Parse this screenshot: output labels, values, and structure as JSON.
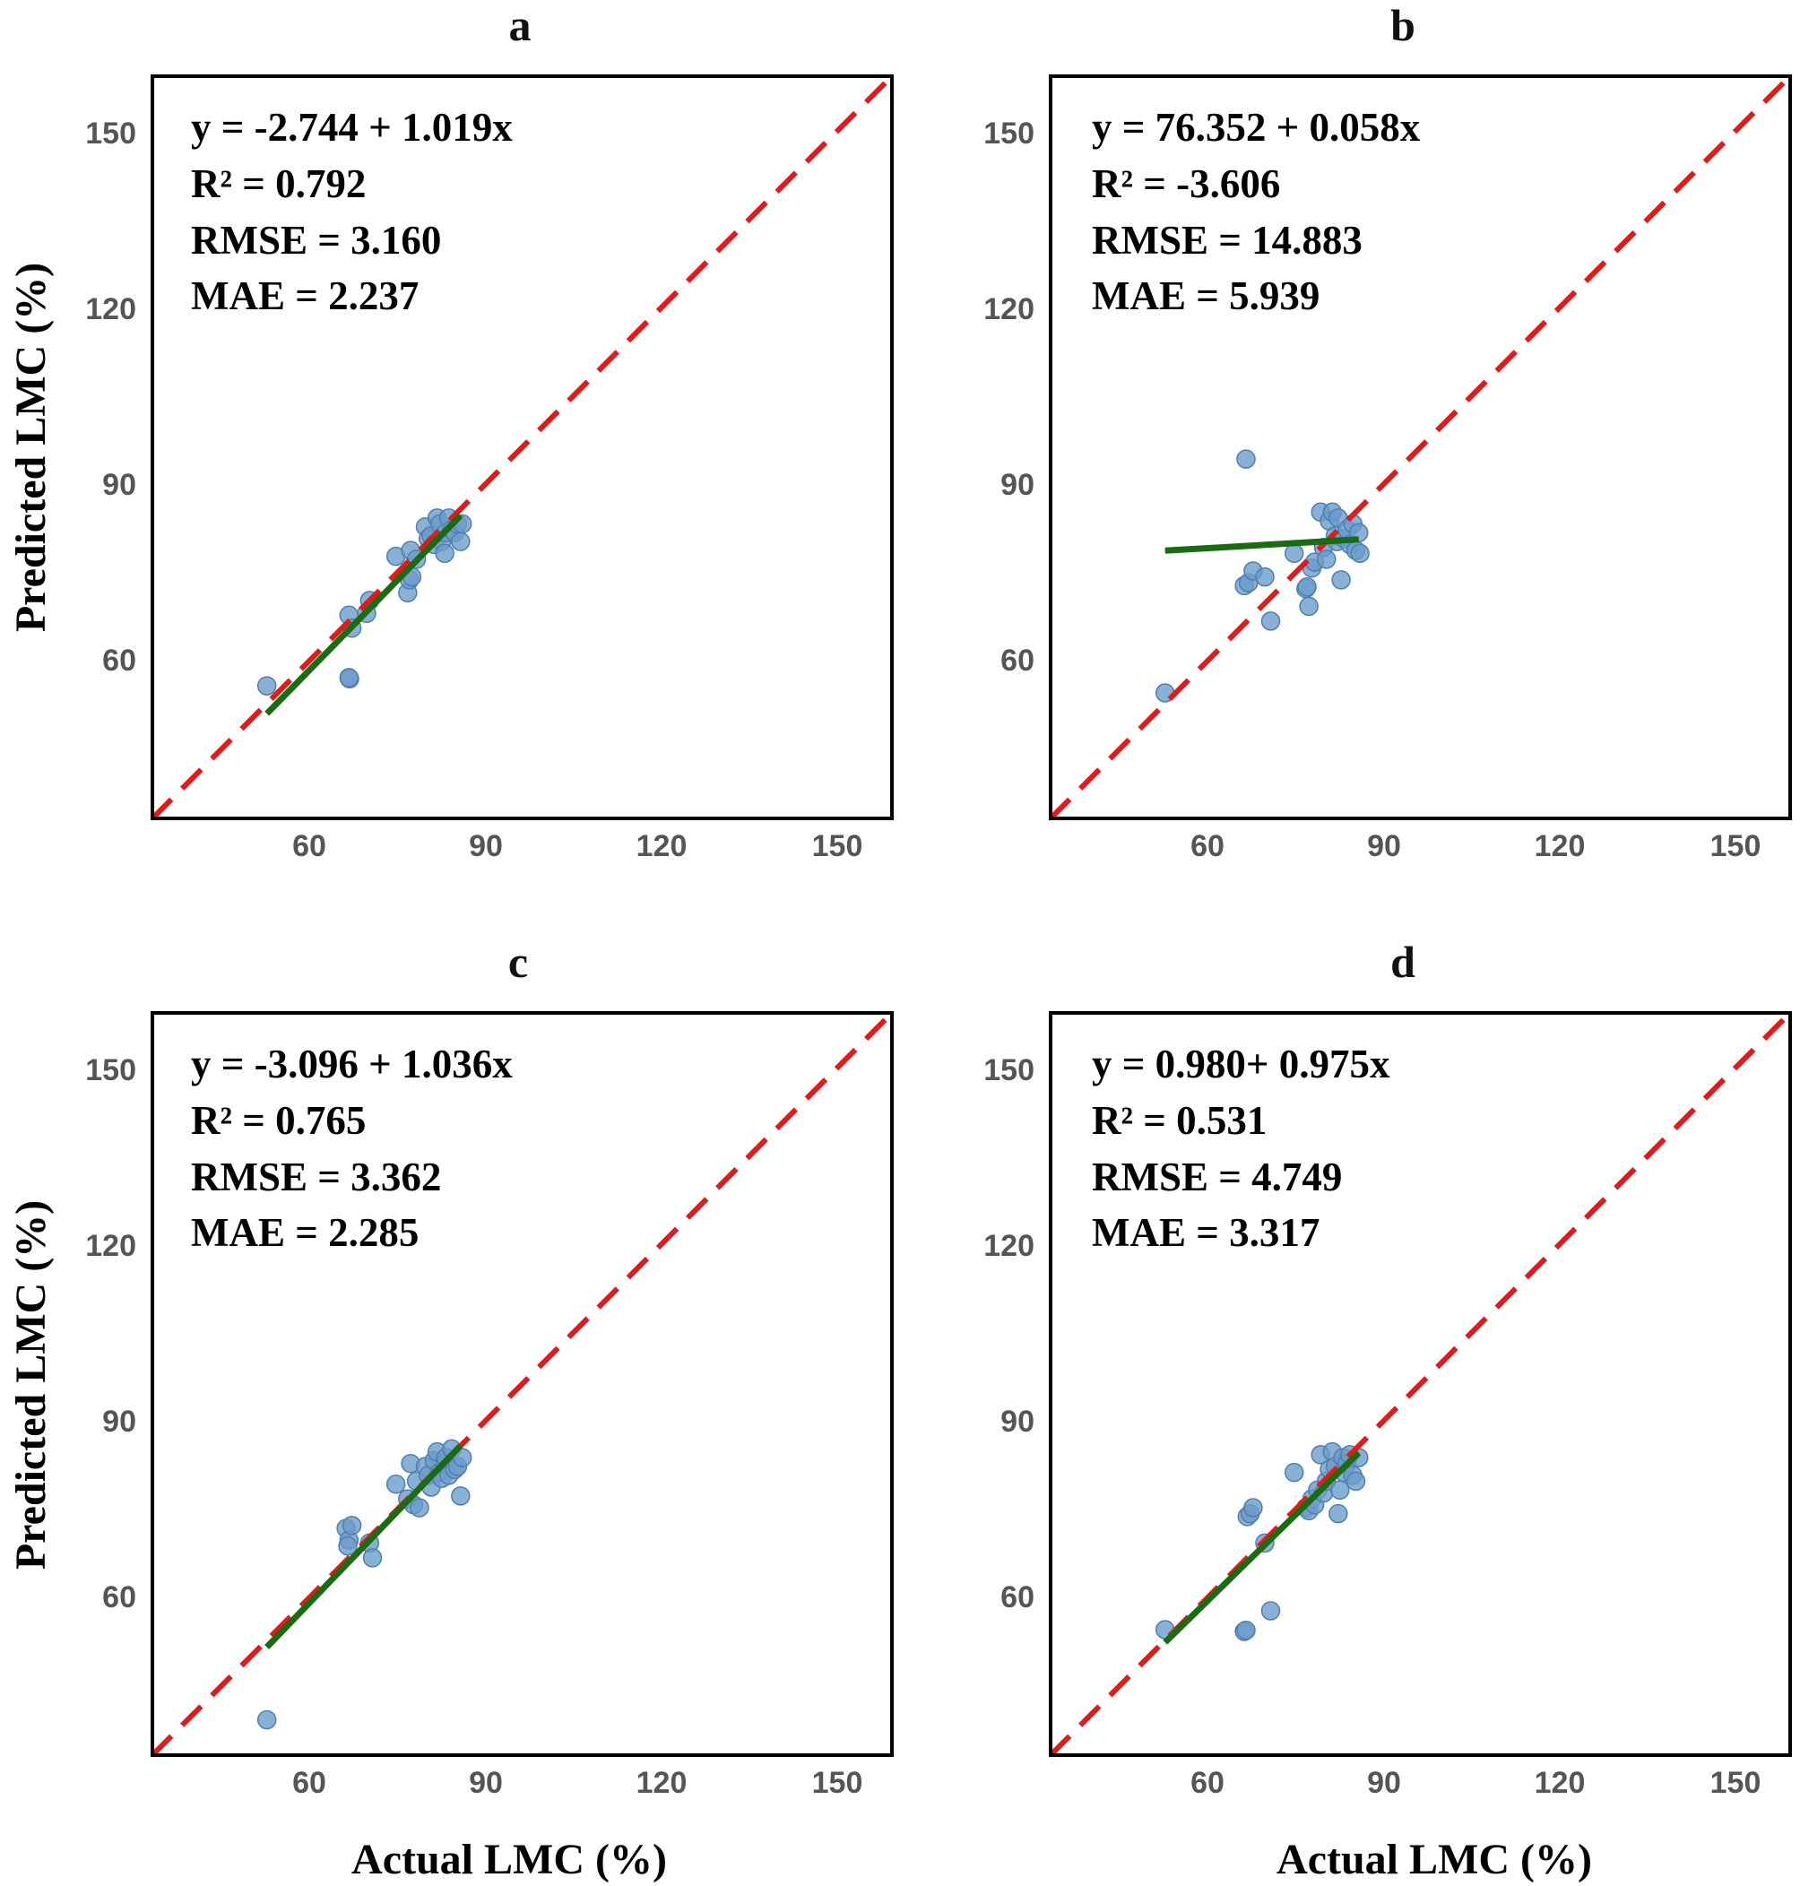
{
  "labels": {
    "ylabel": "Predicted LMC (%)",
    "xlabel": "Actual LMC (%)"
  },
  "colors": {
    "identity_line": "#e01b1b",
    "fit_line": "#1a6b12",
    "points": "#6b9cca",
    "points_edge": "#4f7fae",
    "frame": "#000000"
  },
  "chart_data": [
    {
      "type": "scatter",
      "title": "a",
      "xlabel": "",
      "ylabel": "Predicted LMC (%)",
      "xlim": [
        34,
        160
      ],
      "ylim": [
        34,
        160
      ],
      "xticks": [
        "60",
        "90",
        "120",
        "150"
      ],
      "yticks": [
        "150",
        "120",
        "90",
        "60"
      ],
      "stats": [
        "y = -2.744 + 1.019x",
        "R² = 0.792",
        "RMSE = 3.160",
        "MAE = 2.237"
      ],
      "fit": {
        "intercept": -2.744,
        "slope": 1.019,
        "x_range": [
          53.5,
          86.5
        ]
      },
      "identity_line": true,
      "x": [
        53.5,
        67.5,
        67.6,
        67.5,
        68.0,
        70.5,
        71.0,
        75.5,
        77.5,
        77.8,
        78.0,
        78.2,
        79.0,
        80.5,
        81.0,
        81.5,
        82.0,
        82.5,
        83.0,
        83.3,
        83.8,
        84.0,
        84.5,
        85.0,
        85.5,
        86.0,
        86.5,
        86.8
      ],
      "y": [
        56.5,
        68.5,
        57.7,
        57.9,
        66.3,
        68.8,
        71.0,
        78.5,
        72.3,
        74.5,
        79.5,
        75.0,
        78.0,
        83.5,
        81.5,
        82.0,
        80.5,
        85.0,
        84.0,
        81.0,
        79.0,
        82.5,
        85.0,
        83.0,
        82.5,
        84.0,
        81.0,
        84.0
      ]
    },
    {
      "type": "scatter",
      "title": "b",
      "xlabel": "",
      "ylabel": "",
      "xlim": [
        34,
        160
      ],
      "ylim": [
        34,
        160
      ],
      "xticks": [
        "60",
        "90",
        "120",
        "150"
      ],
      "yticks": [
        "150",
        "120",
        "90",
        "60"
      ],
      "stats": [
        "y = 76.352 + 0.058x",
        "R² = -3.606",
        "RMSE = 14.883",
        "MAE = 5.939"
      ],
      "fit": {
        "intercept": 76.352,
        "slope": 0.058,
        "x_range": [
          53.5,
          86.5
        ]
      },
      "identity_line": true,
      "x": [
        53.5,
        67.3,
        67.0,
        67.7,
        68.5,
        70.5,
        71.5,
        75.5,
        77.5,
        77.7,
        78.0,
        78.5,
        79.0,
        80.0,
        80.5,
        81.0,
        81.5,
        82.0,
        82.5,
        82.8,
        83.0,
        83.5,
        84.0,
        84.5,
        85.0,
        85.5,
        86.0,
        86.5,
        86.7
      ],
      "y": [
        55.3,
        95.0,
        73.5,
        74.0,
        76.0,
        75.0,
        67.5,
        79.0,
        73.0,
        73.3,
        70.0,
        76.5,
        77.5,
        86.0,
        80.0,
        78.0,
        84.5,
        86.0,
        82.0,
        81.0,
        85.0,
        74.5,
        81.5,
        83.0,
        80.5,
        84.0,
        79.5,
        82.5,
        79.0
      ]
    },
    {
      "type": "scatter",
      "title": "c",
      "xlabel": "Actual LMC (%)",
      "ylabel": "Predicted LMC (%)",
      "xlim": [
        34,
        160
      ],
      "ylim": [
        34,
        160
      ],
      "xticks": [
        "60",
        "90",
        "120",
        "150"
      ],
      "yticks": [
        "150",
        "120",
        "90",
        "60"
      ],
      "stats": [
        "y = -3.096 + 1.036x",
        "R² = 0.765",
        "RMSE = 3.362",
        "MAE = 2.285"
      ],
      "fit": {
        "intercept": -3.096,
        "slope": 1.036,
        "x_range": [
          53.5,
          86.5
        ]
      },
      "identity_line": true,
      "x": [
        53.5,
        67.0,
        67.5,
        68.0,
        67.3,
        71.0,
        71.5,
        75.5,
        77.5,
        78.0,
        78.5,
        79.0,
        79.5,
        80.5,
        81.0,
        81.5,
        82.0,
        82.5,
        83.0,
        83.3,
        83.8,
        84.0,
        84.5,
        85.0,
        85.5,
        86.0,
        86.5,
        86.8
      ],
      "y": [
        40.0,
        72.5,
        70.5,
        73.0,
        69.5,
        70.0,
        67.5,
        80.0,
        77.5,
        83.5,
        76.5,
        80.5,
        76.0,
        83.0,
        81.5,
        79.5,
        84.0,
        85.5,
        82.0,
        81.0,
        83.5,
        84.5,
        81.5,
        86.0,
        82.5,
        83.0,
        78.0,
        84.5
      ]
    },
    {
      "type": "scatter",
      "title": "d",
      "xlabel": "Actual LMC (%)",
      "ylabel": "",
      "xlim": [
        34,
        160
      ],
      "ylim": [
        34,
        160
      ],
      "xticks": [
        "60",
        "90",
        "120",
        "150"
      ],
      "yticks": [
        "150",
        "120",
        "90",
        "60"
      ],
      "stats": [
        "y = 0.980+ 0.975x",
        "R² = 0.531",
        "RMSE = 4.749",
        "MAE = 3.317"
      ],
      "fit": {
        "intercept": 0.98,
        "slope": 0.975,
        "x_range": [
          53.5,
          86.5
        ]
      },
      "identity_line": true,
      "x": [
        53.5,
        67.0,
        67.3,
        67.5,
        68.0,
        68.5,
        70.5,
        71.5,
        75.5,
        77.5,
        78.0,
        78.5,
        79.0,
        79.5,
        80.0,
        80.5,
        81.0,
        81.5,
        82.0,
        82.5,
        83.0,
        83.3,
        83.8,
        84.0,
        84.5,
        85.0,
        85.5,
        86.0,
        86.5
      ],
      "y": [
        55.3,
        55.0,
        55.2,
        74.5,
        75.0,
        76.0,
        70.0,
        58.5,
        82.0,
        76.0,
        75.5,
        77.5,
        76.5,
        79.0,
        85.0,
        78.5,
        80.5,
        82.5,
        85.5,
        83.0,
        75.0,
        79.0,
        84.5,
        82.0,
        83.5,
        85.0,
        81.5,
        80.5,
        84.5
      ]
    }
  ]
}
